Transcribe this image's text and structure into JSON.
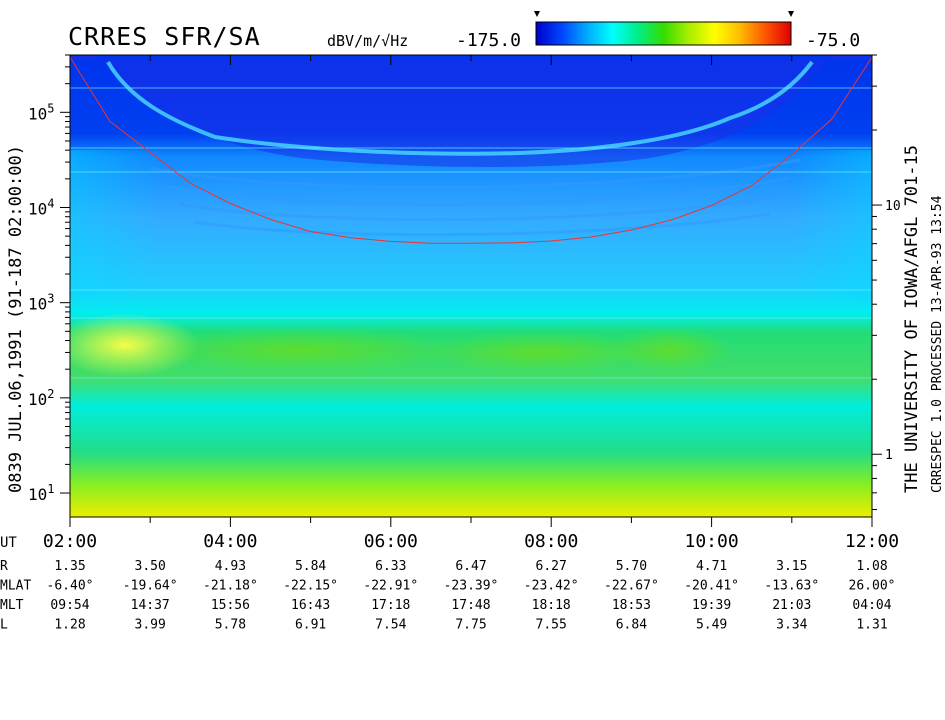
{
  "title": "CRRES SFR/SA",
  "colorbar": {
    "unit": "dBV/m/√Hz",
    "min_label": "-175.0",
    "max_label": "-75.0",
    "min": -175.0,
    "max": -75.0,
    "colors": [
      "#0000cc",
      "#0044ff",
      "#00aaff",
      "#00ffff",
      "#00ee88",
      "#33dd00",
      "#aaee00",
      "#ffff00",
      "#ffbb00",
      "#ff5500",
      "#dd0000"
    ]
  },
  "left_label": "0839  JUL.06,1991  (91-187 02:00:00)",
  "right_label": "THE UNIVERSITY OF IOWA/AFGL 701-15",
  "right_label2": "CRRESPEC 1.0  PROCESSED 13-APR-93  13:54",
  "chart_data": {
    "type": "heatmap",
    "title": "CRRES SFR/SA",
    "xlabel": "UT",
    "x_range_hours": [
      2,
      12
    ],
    "y_scale": "log",
    "y_range": [
      5.6,
      400000
    ],
    "x_ticks": [
      {
        "value": 2,
        "label": "02:00"
      },
      {
        "value": 4,
        "label": "04:00"
      },
      {
        "value": 6,
        "label": "06:00"
      },
      {
        "value": 8,
        "label": "08:00"
      },
      {
        "value": 10,
        "label": "10:00"
      },
      {
        "value": 12,
        "label": "12:00"
      }
    ],
    "y_ticks": [
      {
        "value": 10,
        "label": "10",
        "exp": "1"
      },
      {
        "value": 100,
        "label": "10",
        "exp": "2"
      },
      {
        "value": 1000,
        "label": "10",
        "exp": "3"
      },
      {
        "value": 10000,
        "label": "10",
        "exp": "4"
      },
      {
        "value": 100000,
        "label": "10",
        "exp": "5"
      }
    ],
    "right_axis": {
      "scale": "log",
      "range": [
        0.56,
        40
      ],
      "ticks": [
        {
          "value": 1,
          "label": "1"
        },
        {
          "value": 10,
          "label": "10"
        }
      ]
    },
    "grid": false,
    "gyrofrequency_curve": {
      "color": "#ee3333",
      "points": [
        [
          2.0,
          380000
        ],
        [
          2.5,
          80000
        ],
        [
          3.0,
          38000
        ],
        [
          3.5,
          18000
        ],
        [
          4.0,
          11000
        ],
        [
          4.5,
          7500
        ],
        [
          5.0,
          5600
        ],
        [
          5.5,
          4800
        ],
        [
          6.0,
          4400
        ],
        [
          6.5,
          4200
        ],
        [
          7.0,
          4200
        ],
        [
          7.5,
          4250
        ],
        [
          8.0,
          4450
        ],
        [
          8.5,
          4900
        ],
        [
          9.0,
          5800
        ],
        [
          9.5,
          7400
        ],
        [
          10.0,
          10500
        ],
        [
          10.5,
          17000
        ],
        [
          11.0,
          36000
        ],
        [
          11.5,
          85000
        ],
        [
          12.0,
          380000
        ]
      ]
    },
    "ephemeris": {
      "rows": [
        {
          "label": "R",
          "values": [
            "1.35",
            "3.50",
            "4.93",
            "5.84",
            "6.33",
            "6.47",
            "6.27",
            "5.70",
            "4.71",
            "3.15",
            "1.08"
          ]
        },
        {
          "label": "MLAT",
          "values": [
            "-6.40°",
            "-19.64°",
            "-21.18°",
            "-22.15°",
            "-22.91°",
            "-23.39°",
            "-23.42°",
            "-22.67°",
            "-20.41°",
            "-13.63°",
            "26.00°"
          ]
        },
        {
          "label": "MLT",
          "values": [
            "09:54",
            "14:37",
            "15:56",
            "16:43",
            "17:18",
            "17:48",
            "18:18",
            "18:53",
            "19:39",
            "21:03",
            "04:04"
          ]
        },
        {
          "label": "L",
          "values": [
            "1.28",
            "3.99",
            "5.78",
            "6.91",
            "7.54",
            "7.75",
            "7.55",
            "6.84",
            "5.49",
            "3.34",
            "1.31"
          ]
        }
      ]
    }
  }
}
